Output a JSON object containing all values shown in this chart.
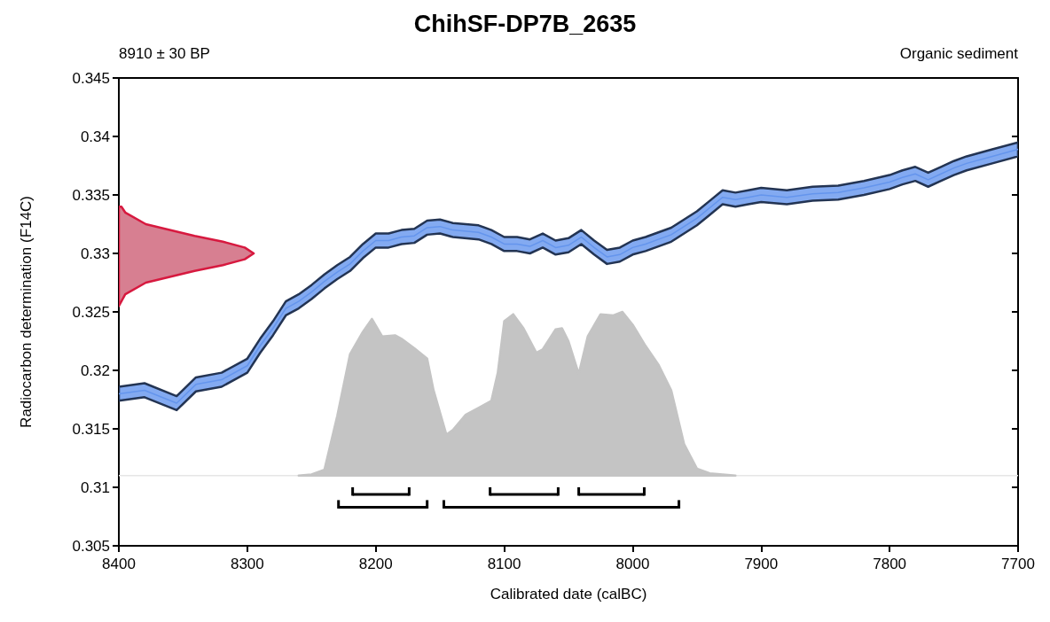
{
  "chart_data": {
    "type": "area",
    "title": "ChihSF-DP7B_2635",
    "xlabel": "Calibrated date (calBC)",
    "ylabel": "Radiocarbon determination (F14C)",
    "annotations": [
      "8910 ± 30 BP",
      "Organic sediment"
    ],
    "xlim": [
      8400,
      7700
    ],
    "xticks": [
      8400,
      8300,
      8200,
      8100,
      8000,
      7900,
      7800,
      7700
    ],
    "ylim": [
      0.305,
      0.345
    ],
    "yticks": [
      0.305,
      0.31,
      0.315,
      0.32,
      0.325,
      0.33,
      0.335,
      0.34,
      0.345
    ],
    "grid": false,
    "ref_lines": [
      {
        "axis": "y",
        "value": 0.311,
        "color": "#e6e6e6"
      }
    ],
    "series": [
      {
        "color": "#c4c4c4",
        "x": [
          8260,
          8250,
          8240,
          8230,
          8220,
          8210,
          8203,
          8195,
          8185,
          8180,
          8170,
          8160,
          8155,
          8145,
          8140,
          8130,
          8120,
          8110,
          8105,
          8100,
          8093,
          8085,
          8075,
          8070,
          8060,
          8055,
          8050,
          8042,
          8035,
          8025,
          8015,
          8008,
          8000,
          7990,
          7980,
          7970,
          7960,
          7950,
          7940,
          7920
        ],
        "values": [
          0.311,
          0.3111,
          0.3115,
          0.3161,
          0.3214,
          0.3233,
          0.3244,
          0.3229,
          0.323,
          0.3227,
          0.3219,
          0.321,
          0.3183,
          0.3145,
          0.3149,
          0.3162,
          0.3168,
          0.3174,
          0.3198,
          0.3242,
          0.3248,
          0.3236,
          0.3215,
          0.3218,
          0.3235,
          0.3236,
          0.3225,
          0.3197,
          0.3229,
          0.3248,
          0.3247,
          0.325,
          0.3239,
          0.3221,
          0.3205,
          0.3183,
          0.3137,
          0.3116,
          0.3112,
          0.311
        ]
      },
      {
        "type": "line",
        "color": "#6495ed",
        "x": [
          8400,
          8380,
          8355,
          8340,
          8320,
          8300,
          8290,
          8280,
          8270,
          8260,
          8250,
          8240,
          8230,
          8220,
          8210,
          8200,
          8190,
          8180,
          8170,
          8160,
          8150,
          8140,
          8120,
          8110,
          8100,
          8090,
          8080,
          8070,
          8060,
          8050,
          8040,
          8030,
          8020,
          8010,
          8000,
          7990,
          7980,
          7970,
          7960,
          7950,
          7940,
          7930,
          7920,
          7910,
          7900,
          7880,
          7860,
          7840,
          7820,
          7800,
          7790,
          7780,
          7770,
          7760,
          7750,
          7740,
          7720,
          7700
        ],
        "values": [
          0.318,
          0.3183,
          0.3172,
          0.3188,
          0.3192,
          0.3204,
          0.3221,
          0.3236,
          0.3253,
          0.3259,
          0.3267,
          0.3276,
          0.3284,
          0.3291,
          0.3302,
          0.3311,
          0.3311,
          0.3314,
          0.3315,
          0.3322,
          0.3323,
          0.332,
          0.3318,
          0.3314,
          0.3308,
          0.3308,
          0.3306,
          0.3311,
          0.3305,
          0.3307,
          0.3314,
          0.3305,
          0.3297,
          0.3299,
          0.3305,
          0.3308,
          0.3312,
          0.3316,
          0.3323,
          0.333,
          0.3339,
          0.3348,
          0.3346,
          0.3348,
          0.335,
          0.3348,
          0.3351,
          0.3352,
          0.3356,
          0.3361,
          0.3365,
          0.3368,
          0.3363,
          0.3368,
          0.3373,
          0.3377,
          0.3383,
          0.3389
        ],
        "lower": [
          0.3174,
          0.3177,
          0.3166,
          0.3182,
          0.3186,
          0.3198,
          0.3215,
          0.323,
          0.3247,
          0.3253,
          0.3261,
          0.327,
          0.3278,
          0.3285,
          0.3296,
          0.3305,
          0.3305,
          0.3308,
          0.3309,
          0.3316,
          0.3317,
          0.3314,
          0.3312,
          0.3308,
          0.3302,
          0.3302,
          0.33,
          0.3305,
          0.3299,
          0.3301,
          0.3308,
          0.3299,
          0.3291,
          0.3293,
          0.3299,
          0.3302,
          0.3306,
          0.331,
          0.3317,
          0.3324,
          0.3333,
          0.3342,
          0.334,
          0.3342,
          0.3344,
          0.3342,
          0.3345,
          0.3346,
          0.335,
          0.3355,
          0.3359,
          0.3362,
          0.3357,
          0.3362,
          0.3367,
          0.3371,
          0.3377,
          0.3383
        ],
        "upper": [
          0.3186,
          0.3189,
          0.3178,
          0.3194,
          0.3198,
          0.321,
          0.3227,
          0.3242,
          0.3259,
          0.3265,
          0.3273,
          0.3282,
          0.329,
          0.3297,
          0.3308,
          0.3317,
          0.3317,
          0.332,
          0.3321,
          0.3328,
          0.3329,
          0.3326,
          0.3324,
          0.332,
          0.3314,
          0.3314,
          0.3312,
          0.3317,
          0.3311,
          0.3313,
          0.332,
          0.3311,
          0.3303,
          0.3305,
          0.3311,
          0.3314,
          0.3318,
          0.3322,
          0.3329,
          0.3336,
          0.3345,
          0.3354,
          0.3352,
          0.3354,
          0.3356,
          0.3354,
          0.3357,
          0.3358,
          0.3362,
          0.3367,
          0.3371,
          0.3374,
          0.3369,
          0.3374,
          0.3379,
          0.3383,
          0.3389,
          0.3395
        ]
      },
      {
        "color": "#d7193f",
        "x": [
          8400,
          8395,
          8379,
          8341,
          8319,
          8302,
          8295,
          8302,
          8319,
          8341,
          8379,
          8395,
          8398,
          8400
        ],
        "values": [
          0.3255,
          0.3265,
          0.3275,
          0.3285,
          0.329,
          0.3295,
          0.33,
          0.3305,
          0.331,
          0.3315,
          0.3325,
          0.3335,
          0.334,
          0.334
        ]
      },
      {
        "type": "line",
        "color": "#000000",
        "x": [
          8218,
          8174
        ],
        "values": [
          0.3094,
          0.3094
        ]
      },
      {
        "type": "line",
        "color": "#000000",
        "x": [
          8111,
          8058
        ],
        "values": [
          0.3094,
          0.3094
        ]
      },
      {
        "type": "line",
        "color": "#000000",
        "x": [
          8042,
          7991
        ],
        "values": [
          0.3094,
          0.3094
        ]
      },
      {
        "type": "line",
        "color": "#000000",
        "x": [
          8229,
          8160
        ],
        "values": [
          0.3083,
          0.3083
        ]
      },
      {
        "type": "line",
        "color": "#000000",
        "x": [
          8147,
          7964
        ],
        "values": [
          0.3083,
          0.3083
        ]
      }
    ]
  }
}
